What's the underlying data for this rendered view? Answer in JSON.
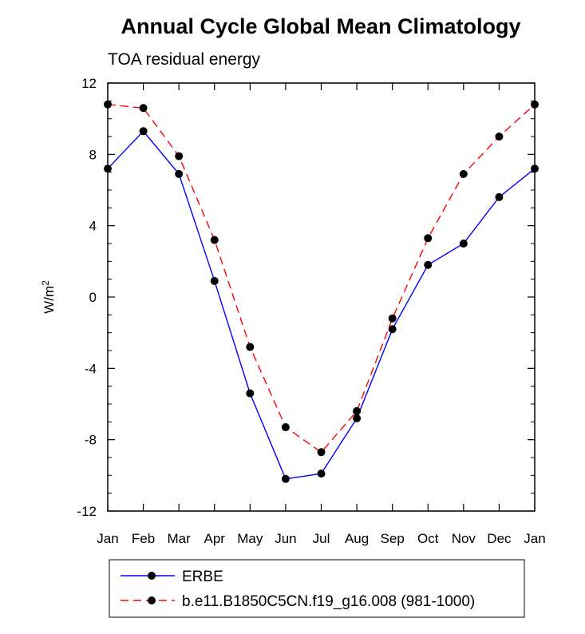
{
  "chart_data": {
    "type": "line",
    "title": "Annual Cycle Global Mean Climatology",
    "subtitle": "TOA residual energy",
    "ylabel": "W/m",
    "ylabel_sup": "2",
    "xlabel": "",
    "ylim": [
      -12,
      12
    ],
    "yticks": [
      12,
      8,
      4,
      0,
      -4,
      -8,
      -12
    ],
    "ytick_labels": [
      "12",
      "8",
      "4",
      "0",
      "-4",
      "-8",
      "-12"
    ],
    "categories": [
      "Jan",
      "Feb",
      "Mar",
      "Apr",
      "May",
      "Jun",
      "Jul",
      "Aug",
      "Sep",
      "Oct",
      "Nov",
      "Dec",
      "Jan"
    ],
    "series": [
      {
        "name": "ERBE",
        "color": "#0000ff",
        "dash": "solid",
        "values": [
          7.2,
          9.3,
          6.9,
          0.9,
          -5.4,
          -10.2,
          -9.9,
          -6.8,
          -1.8,
          1.8,
          3.0,
          5.6,
          7.2
        ]
      },
      {
        "name": "b.e11.B1850C5CN.f19_g16.008 (981-1000)",
        "color": "#ff0000",
        "dash": "dashed",
        "values": [
          10.8,
          10.6,
          7.9,
          3.2,
          -2.8,
          -7.3,
          -8.7,
          -6.4,
          -1.2,
          3.3,
          6.9,
          9.0,
          10.8
        ]
      }
    ],
    "legend_position": "bottom"
  }
}
